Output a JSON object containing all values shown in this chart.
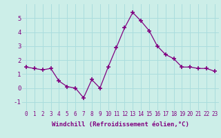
{
  "x": [
    0,
    1,
    2,
    3,
    4,
    5,
    6,
    7,
    8,
    9,
    10,
    11,
    12,
    13,
    14,
    15,
    16,
    17,
    18,
    19,
    20,
    21,
    22,
    23
  ],
  "y": [
    1.5,
    1.4,
    1.3,
    1.4,
    0.5,
    0.1,
    0.0,
    -0.7,
    0.6,
    0.0,
    1.5,
    2.9,
    4.3,
    5.4,
    4.8,
    4.1,
    3.0,
    2.4,
    2.1,
    1.5,
    1.5,
    1.4,
    1.4,
    1.2
  ],
  "line_color": "#800080",
  "marker": "+",
  "marker_size": 5,
  "marker_lw": 1.2,
  "bg_color": "#cceee8",
  "grid_color": "#aadddd",
  "xlabel": "Windchill (Refroidissement éolien,°C)",
  "xlabel_color": "#800080",
  "xlabel_fontsize": 6.5,
  "ylabel_ticks": [
    -1,
    0,
    1,
    2,
    3,
    4,
    5
  ],
  "ylim": [
    -1.6,
    6.0
  ],
  "xlim": [
    -0.5,
    23.5
  ],
  "tick_color": "#800080",
  "tick_fontsize": 5.5,
  "line_width": 0.9
}
